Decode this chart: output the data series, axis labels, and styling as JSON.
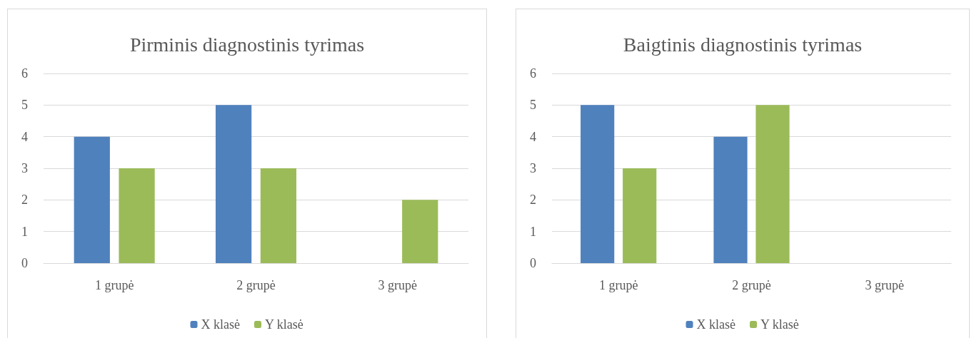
{
  "chart_data": [
    {
      "type": "bar",
      "title": "Pirminis diagnostinis tyrimas",
      "categories": [
        "1 grupė",
        "2 grupė",
        "3 grupė"
      ],
      "series": [
        {
          "name": "X klasė",
          "color": "#4f81bd",
          "values": [
            4,
            5,
            0
          ]
        },
        {
          "name": "Y klasė",
          "color": "#9bbb59",
          "values": [
            3,
            3,
            2
          ]
        }
      ],
      "ylim": [
        0,
        6
      ],
      "yticks": [
        0,
        1,
        2,
        3,
        4,
        5,
        6
      ],
      "grid": "y",
      "legend": "bottom"
    },
    {
      "type": "bar",
      "title": "Baigtinis diagnostinis tyrimas",
      "categories": [
        "1 grupė",
        "2 grupė",
        "3 grupė"
      ],
      "series": [
        {
          "name": "X klasė",
          "color": "#4f81bd",
          "values": [
            5,
            4,
            0
          ]
        },
        {
          "name": "Y klasė",
          "color": "#9bbb59",
          "values": [
            3,
            5,
            0
          ]
        }
      ],
      "ylim": [
        0,
        6
      ],
      "yticks": [
        0,
        1,
        2,
        3,
        4,
        5,
        6
      ],
      "grid": "y",
      "legend": "bottom"
    }
  ]
}
